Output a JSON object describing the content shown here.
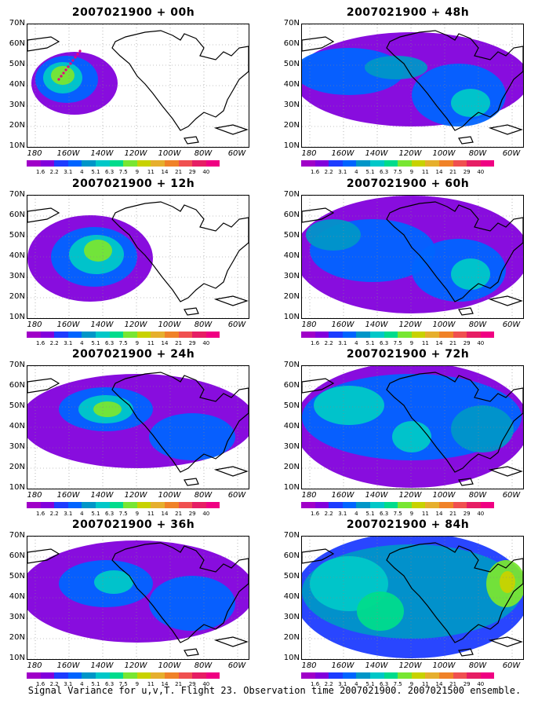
{
  "panels": [
    {
      "title": "2007021900 + 00h"
    },
    {
      "title": "2007021900 + 48h"
    },
    {
      "title": "2007021900 + 12h"
    },
    {
      "title": "2007021900 + 60h"
    },
    {
      "title": "2007021900 + 24h"
    },
    {
      "title": "2007021900 + 72h"
    },
    {
      "title": "2007021900 + 36h"
    },
    {
      "title": "2007021900 + 84h"
    }
  ],
  "lat_labels": [
    "70N",
    "60N",
    "50N",
    "40N",
    "30N",
    "20N",
    "10N"
  ],
  "lon_labels": [
    "180",
    "160W",
    "140W",
    "120W",
    "100W",
    "80W",
    "60W"
  ],
  "colorbar": {
    "levels": [
      "1.6",
      "2.2",
      "3.1",
      "4",
      "5.1",
      "6.3",
      "7.5",
      "9",
      "11",
      "14",
      "21",
      "29",
      "40"
    ],
    "colors": [
      "#a000c8",
      "#8200dc",
      "#1e3cff",
      "#0064ff",
      "#0096c8",
      "#00c8c8",
      "#00dc8c",
      "#78e632",
      "#c8d200",
      "#e6af2d",
      "#f08228",
      "#f05050",
      "#e61e64",
      "#f00082"
    ]
  },
  "caption": "Signal Variance for u,v,T. Flight 23. Observation time 2007021900. 2007021500 ensemble."
}
